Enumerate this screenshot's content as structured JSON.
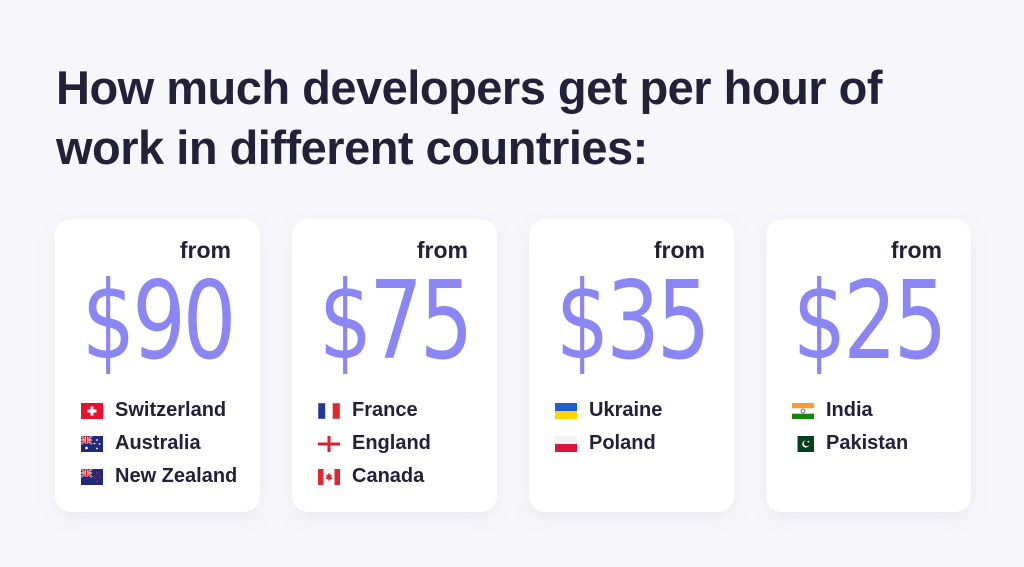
{
  "title": "How much developers get per hour of work in different countries:",
  "cards": [
    {
      "from_label": "from",
      "price": "$90",
      "countries": [
        {
          "name": "Switzerland",
          "flag": "switzerland-flag-icon"
        },
        {
          "name": "Australia",
          "flag": "australia-flag-icon"
        },
        {
          "name": "New Zealand",
          "flag": "new-zealand-flag-icon"
        }
      ]
    },
    {
      "from_label": "from",
      "price": "$75",
      "countries": [
        {
          "name": "France",
          "flag": "france-flag-icon"
        },
        {
          "name": "England",
          "flag": "england-flag-icon"
        },
        {
          "name": "Canada",
          "flag": "canada-flag-icon"
        }
      ]
    },
    {
      "from_label": "from",
      "price": "$35",
      "countries": [
        {
          "name": "Ukraine",
          "flag": "ukraine-flag-icon"
        },
        {
          "name": "Poland",
          "flag": "poland-flag-icon"
        }
      ]
    },
    {
      "from_label": "from",
      "price": "$25",
      "countries": [
        {
          "name": "India",
          "flag": "india-flag-icon"
        },
        {
          "name": "Pakistan",
          "flag": "pakistan-flag-icon"
        }
      ]
    }
  ],
  "colors": {
    "price": "#8a86f5",
    "text": "#23213a",
    "background": "#f7f7fb",
    "card": "#ffffff"
  }
}
